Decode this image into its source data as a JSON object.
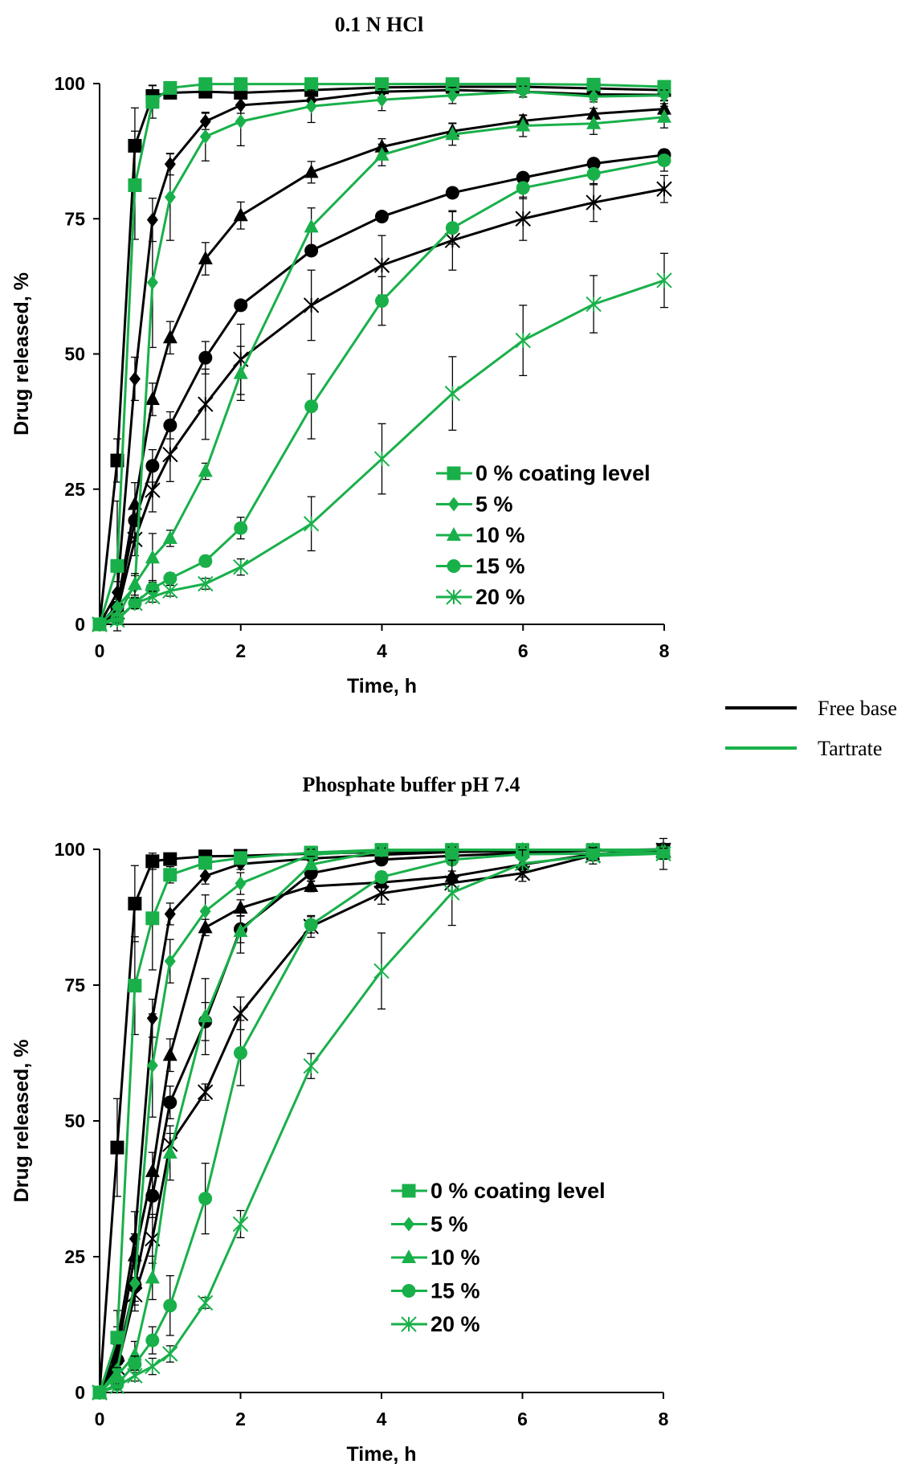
{
  "colors": {
    "free_base": "#000000",
    "tartrate": "#19b04a"
  },
  "key": [
    {
      "label": "Free base",
      "color": "#000000"
    },
    {
      "label": "Tartrate",
      "color": "#19b04a"
    }
  ],
  "chart_data": [
    {
      "type": "line",
      "title": "0.1 N HCl",
      "xlabel": "Time, h",
      "ylabel": "Drug released, %",
      "xlim": [
        0,
        8
      ],
      "ylim": [
        0,
        100
      ],
      "xticks": [
        0,
        2,
        4,
        6,
        8
      ],
      "yticks": [
        0,
        25,
        50,
        75,
        100
      ],
      "grid": false,
      "legend_position": "bottom-right",
      "legend": [
        {
          "label": "0 % coating level",
          "marker": "square"
        },
        {
          "label": "5 %",
          "marker": "diamond"
        },
        {
          "label": "10 %",
          "marker": "triangle"
        },
        {
          "label": "15 %",
          "marker": "circle"
        },
        {
          "label": "20 %",
          "marker": "star"
        }
      ],
      "x": [
        0,
        0.25,
        0.5,
        0.75,
        1,
        1.5,
        2,
        3,
        4,
        5,
        6,
        7,
        8
      ],
      "series": [
        {
          "group": "Free base",
          "coating": "0 %",
          "marker": "square",
          "values": [
            0,
            30.3,
            88.5,
            97.7,
            98.3,
            98.5,
            98.3,
            98.8,
            99.3,
            99.4,
            99.4,
            99.1,
            98.8
          ],
          "error": [
            0,
            4,
            7,
            2,
            1,
            1,
            1,
            1,
            1,
            1,
            1,
            1,
            1
          ]
        },
        {
          "group": "Free base",
          "coating": "5 %",
          "marker": "diamond",
          "values": [
            0,
            5.9,
            45.4,
            74.8,
            85.1,
            93.0,
            96.0,
            96.9,
            98.5,
            98.8,
            98.5,
            98.0,
            97.9
          ],
          "error": [
            0,
            2,
            4,
            4,
            2,
            1.5,
            1.5,
            1,
            1,
            1,
            1,
            1,
            1
          ]
        },
        {
          "group": "Free base",
          "coating": "10 %",
          "marker": "triangle",
          "values": [
            0,
            3.4,
            22.2,
            41.6,
            53.0,
            67.6,
            75.6,
            83.6,
            88.3,
            91.2,
            93.1,
            94.4,
            95.3
          ],
          "error": [
            0,
            1.5,
            4,
            3,
            3,
            3,
            2.5,
            2,
            1.5,
            1.5,
            1,
            1,
            1
          ]
        },
        {
          "group": "Free base",
          "coating": "15 %",
          "marker": "circle",
          "values": [
            0,
            3.1,
            19.2,
            29.3,
            36.8,
            49.3,
            59.0,
            69.1,
            75.4,
            79.8,
            82.6,
            85.2,
            86.8
          ],
          "error": [
            0,
            1.5,
            3,
            3,
            2.5,
            3,
            0,
            0,
            0,
            0,
            0,
            0,
            0
          ]
        },
        {
          "group": "Free base",
          "coating": "20 %",
          "marker": "star",
          "values": [
            0,
            2.3,
            15.7,
            24.8,
            31.4,
            40.7,
            49.0,
            59.0,
            66.4,
            71.0,
            75.0,
            78.0,
            80.5
          ],
          "error": [
            0,
            1.5,
            3,
            4,
            5,
            6.5,
            6.5,
            6.5,
            5.5,
            5.5,
            4,
            3.5,
            2.5
          ]
        },
        {
          "group": "Tartrate",
          "coating": "0 %",
          "marker": "square",
          "values": [
            0,
            10.8,
            81.2,
            96.6,
            99.2,
            99.9,
            99.9,
            99.9,
            99.9,
            99.9,
            99.9,
            99.8,
            99.4
          ],
          "error": [
            0,
            12,
            10,
            3,
            1,
            0.5,
            0.5,
            0.5,
            0.5,
            0.5,
            0.5,
            0.5,
            0.5
          ]
        },
        {
          "group": "Tartrate",
          "coating": "5 %",
          "marker": "diamond",
          "values": [
            0,
            3.2,
            7.0,
            63.2,
            79.0,
            90.2,
            93.0,
            95.8,
            97.0,
            97.8,
            98.5,
            97.6,
            97.8
          ],
          "error": [
            0,
            1,
            2,
            12,
            8,
            4.5,
            4.5,
            3,
            2,
            1.5,
            1,
            1,
            1
          ]
        },
        {
          "group": "Tartrate",
          "coating": "10 %",
          "marker": "triangle",
          "values": [
            0,
            1.4,
            7.4,
            12.3,
            15.9,
            28.3,
            46.4,
            73.5,
            86.8,
            90.6,
            92.2,
            92.6,
            93.8
          ],
          "error": [
            0,
            1,
            2,
            4.5,
            1.5,
            1.5,
            5,
            3.5,
            2,
            2,
            2,
            2,
            2
          ]
        },
        {
          "group": "Tartrate",
          "coating": "15 %",
          "marker": "circle",
          "values": [
            0,
            1.0,
            3.9,
            6.6,
            8.5,
            11.7,
            17.8,
            40.3,
            59.8,
            73.3,
            80.7,
            83.3,
            85.8
          ],
          "error": [
            0,
            0.5,
            1,
            1.5,
            1,
            1,
            2,
            6,
            4.5,
            3,
            2,
            2,
            2
          ]
        },
        {
          "group": "Tartrate",
          "coating": "20 %",
          "marker": "star",
          "values": [
            0,
            0.8,
            3.9,
            5.1,
            6.2,
            7.5,
            10.6,
            18.6,
            30.6,
            42.7,
            52.5,
            59.2,
            63.6
          ],
          "error": [
            0,
            0.5,
            1,
            1,
            1,
            1,
            1.5,
            5,
            6.5,
            6.8,
            6.5,
            5.3,
            5
          ]
        }
      ]
    },
    {
      "type": "line",
      "title": "Phosphate buffer pH 7.4",
      "xlabel": "Time, h",
      "ylabel": "Drug released, %",
      "xlim": [
        0,
        8
      ],
      "ylim": [
        0,
        100
      ],
      "xticks": [
        0,
        2,
        4,
        6,
        8
      ],
      "yticks": [
        0,
        25,
        50,
        75,
        100
      ],
      "grid": false,
      "legend_position": "bottom-right",
      "legend": [
        {
          "label": "0 % coating level",
          "marker": "square"
        },
        {
          "label": "5 %",
          "marker": "diamond"
        },
        {
          "label": "10 %",
          "marker": "triangle"
        },
        {
          "label": "15 %",
          "marker": "circle"
        },
        {
          "label": "20 %",
          "marker": "star"
        }
      ],
      "x": [
        0,
        0.25,
        0.5,
        0.75,
        1,
        1.5,
        2,
        3,
        4,
        5,
        6,
        7,
        8
      ],
      "series": [
        {
          "group": "Free base",
          "coating": "0 %",
          "marker": "square",
          "values": [
            0,
            45.1,
            90.0,
            97.8,
            98.2,
            98.7,
            98.8,
            99.2,
            99.5,
            99.6,
            99.6,
            99.8,
            99.9
          ],
          "error": [
            0,
            9,
            7,
            1.5,
            1,
            1,
            1,
            0.5,
            0.5,
            0.5,
            0.5,
            0.5,
            0.5
          ]
        },
        {
          "group": "Free base",
          "coating": "5 %",
          "marker": "diamond",
          "values": [
            0,
            9.1,
            28.3,
            68.9,
            88.1,
            95.1,
            97.3,
            98.3,
            99.0,
            99.5,
            99.7,
            99.8,
            99.9
          ],
          "error": [
            0,
            3,
            5,
            3.5,
            2,
            1.5,
            1,
            1,
            0.5,
            0.5,
            0.5,
            0.5,
            0.5
          ]
        },
        {
          "group": "Free base",
          "coating": "10 %",
          "marker": "triangle",
          "values": [
            0,
            7.1,
            25.2,
            40.7,
            62.1,
            85.6,
            89.2,
            93.2,
            93.9,
            95.0,
            97.2,
            99.1,
            99.9
          ],
          "error": [
            0,
            2.5,
            4,
            3.5,
            3,
            1.5,
            1.5,
            1,
            1,
            1,
            1,
            0.5,
            0.5
          ]
        },
        {
          "group": "Free base",
          "coating": "15 %",
          "marker": "circle",
          "values": [
            0,
            6.0,
            19.8,
            36.2,
            53.4,
            68.3,
            85.3,
            95.6,
            98.1,
            98.8,
            99.3,
            99.8,
            100.0
          ],
          "error": [
            0,
            2,
            3,
            4,
            3,
            3.5,
            2.5,
            1.5,
            1,
            0.5,
            0.5,
            0.5,
            0.5
          ]
        },
        {
          "group": "Free base",
          "coating": "20 %",
          "marker": "star",
          "values": [
            0,
            4.6,
            18.0,
            28.3,
            45.7,
            55.3,
            69.8,
            85.8,
            91.9,
            93.8,
            95.6,
            98.9,
            99.8
          ],
          "error": [
            0,
            2,
            3,
            4.5,
            2,
            1.5,
            3,
            2,
            2,
            1.5,
            1.5,
            1,
            0.5
          ]
        },
        {
          "group": "Tartrate",
          "coating": "0 %",
          "marker": "square",
          "values": [
            0,
            10.1,
            74.9,
            87.3,
            95.3,
            97.5,
            98.4,
            99.4,
            99.9,
            99.9,
            99.9,
            99.9,
            99.3
          ],
          "error": [
            0,
            5,
            9,
            9.5,
            1.5,
            1,
            1,
            0.5,
            0.5,
            0.5,
            0.5,
            0.5,
            0.5
          ]
        },
        {
          "group": "Tartrate",
          "coating": "5 %",
          "marker": "diamond",
          "values": [
            0,
            4.2,
            20.1,
            60.2,
            79.4,
            88.6,
            93.7,
            99.0,
            99.8,
            99.9,
            99.9,
            99.9,
            99.9
          ],
          "error": [
            0,
            2,
            4,
            9.5,
            4,
            3,
            2,
            1,
            0.5,
            0.5,
            0.5,
            0.5,
            0.5
          ]
        },
        {
          "group": "Tartrate",
          "coating": "10 %",
          "marker": "triangle",
          "values": [
            0,
            3.1,
            6.9,
            21.1,
            44.1,
            69.2,
            84.9,
            97.2,
            99.7,
            99.9,
            99.9,
            99.9,
            99.9
          ],
          "error": [
            0,
            1.5,
            2.5,
            4,
            5,
            7,
            4,
            1.5,
            0.5,
            0.5,
            0.5,
            0.5,
            0.5
          ]
        },
        {
          "group": "Tartrate",
          "coating": "15 %",
          "marker": "circle",
          "values": [
            0,
            1.5,
            5.2,
            9.6,
            16.0,
            35.7,
            62.5,
            86.1,
            94.9,
            98.1,
            99.1,
            99.2,
            99.3
          ],
          "error": [
            0,
            0.8,
            1.5,
            2.5,
            5.5,
            6.5,
            6,
            1.5,
            1,
            1,
            1,
            1,
            3
          ]
        },
        {
          "group": "Tartrate",
          "coating": "20 %",
          "marker": "star",
          "values": [
            0,
            1.1,
            3.1,
            4.8,
            7.1,
            16.5,
            31.0,
            60.1,
            77.6,
            92.0,
            97.4,
            98.8,
            99.2
          ],
          "error": [
            0,
            0.5,
            1,
            1.5,
            1.5,
            1,
            2.5,
            2.3,
            7,
            6,
            2.5,
            1.5,
            1
          ]
        }
      ]
    }
  ]
}
